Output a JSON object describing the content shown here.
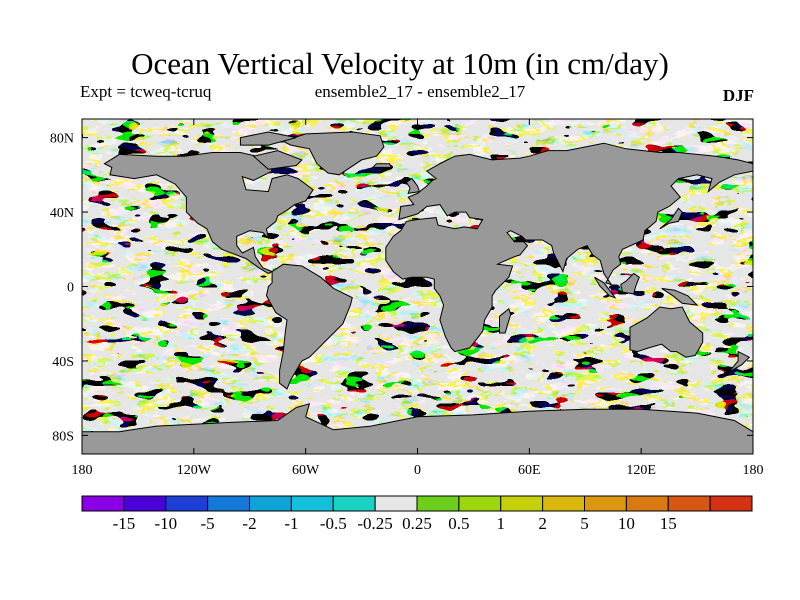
{
  "title": "Ocean Vertical Velocity at 10m (in cm/day)",
  "subtitle_left": "Expt = tcweq-tcruq",
  "subtitle_center": "ensemble2_17 - ensemble2_17",
  "subtitle_right": "DJF",
  "map": {
    "lon_range": [
      -180,
      180
    ],
    "lat_range": [
      -90,
      90
    ],
    "land_color": "#999999",
    "ice_color": "#e6e6e6",
    "y_ticks": [
      {
        "lat": 80,
        "label": "80N"
      },
      {
        "lat": 40,
        "label": "40N"
      },
      {
        "lat": 0,
        "label": "0"
      },
      {
        "lat": -40,
        "label": "40S"
      },
      {
        "lat": -80,
        "label": "80S"
      }
    ],
    "x_ticks": [
      {
        "lon": -180,
        "label": "180"
      },
      {
        "lon": -120,
        "label": "120W"
      },
      {
        "lon": -60,
        "label": "60W"
      },
      {
        "lon": 0,
        "label": "0"
      },
      {
        "lon": 60,
        "label": "60E"
      },
      {
        "lon": 120,
        "label": "120E"
      },
      {
        "lon": 180,
        "label": "180"
      }
    ]
  },
  "colorbar": {
    "colors": [
      "#8a00e6",
      "#4b00d9",
      "#1e3fd6",
      "#1478d8",
      "#10a3d8",
      "#13bfd9",
      "#1ad1c4",
      "#e6e6e6",
      "#6ccf1c",
      "#9bd60e",
      "#c4d10a",
      "#d9b80d",
      "#dc9710",
      "#d97912",
      "#d65714",
      "#d53215"
    ],
    "labels": [
      "-15",
      "-10",
      "-5",
      "-2",
      "-1",
      "-0.5",
      "-0.25",
      "0.25",
      "0.5",
      "1",
      "2",
      "5",
      "10",
      "15"
    ]
  }
}
